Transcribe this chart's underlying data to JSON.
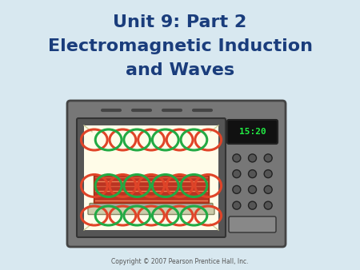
{
  "title_line1": "Unit 9: Part 2",
  "title_line2": "Electromagnetic Induction",
  "title_line3": "and Waves",
  "title_color": "#1a3d7c",
  "bg_color": "#d8e8f0",
  "copyright_text": "Copyright © 2007 Pearson Prentice Hall, Inc.",
  "microwave_body_color": "#777777",
  "microwave_body_dark": "#444444",
  "microwave_inner_bg": "#fffce8",
  "display_bg": "#111111",
  "display_text": "15:20",
  "display_text_color": "#22ee44",
  "wave_color_red": "#e04428",
  "wave_color_green": "#22aa44",
  "food_color": "#cc3322",
  "shelf_color": "#aaaaaa",
  "shelf_plate_color": "#bbbbaa"
}
